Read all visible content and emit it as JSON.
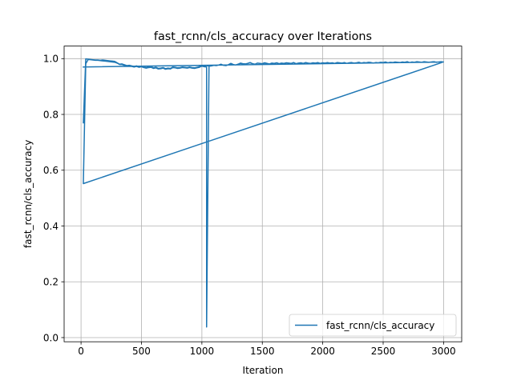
{
  "chart_data": {
    "type": "line",
    "title": "fast_rcnn/cls_accuracy over Iterations",
    "xlabel": "Iteration",
    "ylabel": "fast_rcnn/cls_accuracy",
    "xlim": [
      -140,
      3150
    ],
    "ylim": [
      -0.015,
      1.045
    ],
    "xticks": [
      0,
      500,
      1000,
      1500,
      2000,
      2500,
      3000
    ],
    "xtick_labels": [
      "0",
      "500",
      "1000",
      "1500",
      "2000",
      "2500",
      "3000"
    ],
    "yticks": [
      0.0,
      0.2,
      0.4,
      0.6,
      0.8,
      1.0
    ],
    "ytick_labels": [
      "0.0",
      "0.2",
      "0.4",
      "0.6",
      "0.8",
      "1.0"
    ],
    "grid": true,
    "legend": "lower-right",
    "series_color": "#1f77b4",
    "series": [
      {
        "name": "fast_rcnn/cls_accuracy",
        "x": [
          19,
          39,
          59,
          79,
          99,
          119,
          139,
          159,
          179,
          199,
          219,
          239,
          259,
          279,
          299,
          319,
          339,
          359,
          379,
          399,
          419,
          439,
          459,
          479,
          499,
          519,
          539,
          559,
          579,
          599,
          619,
          639,
          659,
          679,
          699,
          719,
          739,
          759,
          779,
          799,
          819,
          839,
          859,
          879,
          899,
          919,
          939,
          959,
          979,
          999,
          1019,
          1039,
          1059,
          1079,
          1099,
          1119,
          1139,
          1159,
          1179,
          1199,
          1219,
          1239,
          1259,
          1279,
          1299,
          1319,
          1339,
          1359,
          1379,
          1399,
          1419,
          1439,
          1459,
          1479,
          1499,
          1519,
          1539,
          1559,
          1579,
          1599,
          1619,
          1639,
          1659,
          1679,
          1699,
          1719,
          1739,
          1759,
          1779,
          1799,
          1819,
          1839,
          1859,
          1879,
          1899,
          1919,
          1939,
          1959,
          1979,
          1999,
          2019,
          2039,
          2059,
          2079,
          2099,
          2119,
          2139,
          2159,
          2179,
          2199,
          2219,
          2239,
          2259,
          2279,
          2299,
          2319,
          2339,
          2359,
          2379,
          2399,
          2419,
          2439,
          2459,
          2479,
          2499,
          2519,
          2539,
          2559,
          2579,
          2599,
          2619,
          2639,
          2659,
          2679,
          2699,
          2719,
          2739,
          2759,
          2779,
          2799,
          2819,
          2839,
          2859,
          2879,
          2899,
          2919,
          2939,
          2959,
          2979,
          2999,
          19,
          39,
          59,
          79,
          99,
          119,
          139,
          159,
          179,
          199,
          219,
          239,
          259,
          279,
          299,
          319,
          339,
          359,
          379,
          399,
          419,
          439,
          459,
          479,
          499,
          519,
          539,
          559,
          579,
          599,
          619,
          639,
          659,
          679,
          699,
          719,
          739,
          759,
          779,
          799,
          819,
          839,
          859,
          879,
          899,
          919,
          939,
          959,
          979,
          999,
          1019,
          1039,
          1039,
          1059,
          1079,
          1099,
          1119,
          1139,
          1159,
          1179,
          1199,
          1219,
          1239,
          1259,
          1279,
          1299,
          1319,
          1339,
          1359,
          1379,
          1399,
          1419,
          1439,
          1459,
          1479,
          1499,
          1519,
          1539,
          1559,
          1579,
          1599,
          1619,
          1639,
          1659,
          1679,
          1699,
          1719,
          1739,
          1759,
          1779,
          1799,
          1819,
          1839,
          1859,
          1879,
          1899,
          1919,
          1939,
          1959,
          1979,
          1999,
          2019,
          2039,
          2059,
          2079,
          2099,
          2119,
          2139,
          2159,
          2179,
          2199,
          2219,
          2239,
          2259,
          2279,
          2299,
          2319,
          2339,
          2359,
          2379,
          2399,
          2419,
          2439,
          2459,
          2479,
          2499,
          2519,
          2539,
          2559,
          2579,
          2599,
          2619,
          2639,
          2659,
          2679,
          2699,
          2719,
          2739,
          2759,
          2779,
          2799,
          2819,
          2839,
          2859,
          2879,
          2899,
          2919,
          2939,
          2959,
          2979,
          2999,
          19
        ],
        "y": [
          0.77,
          0.999,
          0.998,
          0.997,
          0.996,
          0.995,
          0.995,
          0.994,
          0.995,
          0.994,
          0.993,
          0.992,
          0.991,
          0.99,
          0.985,
          0.98,
          0.981,
          0.978,
          0.975,
          0.976,
          0.974,
          0.972,
          0.974,
          0.971,
          0.973,
          0.97,
          0.968,
          0.97,
          0.971,
          0.967,
          0.969,
          0.965,
          0.966,
          0.968,
          0.964,
          0.966,
          0.965,
          0.97,
          0.969,
          0.967,
          0.968,
          0.97,
          0.969,
          0.968,
          0.97,
          0.968,
          0.967,
          0.969,
          0.971,
          0.975,
          0.973,
          0.975,
          0.973,
          0.974,
          0.976,
          0.975,
          0.977,
          0.98,
          0.976,
          0.975,
          0.978,
          0.983,
          0.979,
          0.977,
          0.98,
          0.984,
          0.982,
          0.981,
          0.983,
          0.986,
          0.982,
          0.98,
          0.984,
          0.983,
          0.982,
          0.985,
          0.983,
          0.981,
          0.984,
          0.983,
          0.985,
          0.982,
          0.984,
          0.983,
          0.985,
          0.984,
          0.983,
          0.986,
          0.982,
          0.984,
          0.985,
          0.983,
          0.986,
          0.984,
          0.983,
          0.985,
          0.984,
          0.986,
          0.983,
          0.985,
          0.984,
          0.986,
          0.984,
          0.985,
          0.983,
          0.986,
          0.985,
          0.984,
          0.986,
          0.983,
          0.985,
          0.986,
          0.984,
          0.985,
          0.987,
          0.984,
          0.986,
          0.985,
          0.987,
          0.986,
          0.984,
          0.986,
          0.985,
          0.987,
          0.986,
          0.988,
          0.985,
          0.987,
          0.986,
          0.988,
          0.987,
          0.986,
          0.988,
          0.987,
          0.989,
          0.986,
          0.988,
          0.987,
          0.989,
          0.988,
          0.987,
          0.989,
          0.988,
          0.987,
          0.988,
          0.989,
          0.987,
          0.988,
          0.989,
          0.988,
          0.552,
          0.982,
          0.997,
          0.996,
          0.995,
          0.994,
          0.994,
          0.993,
          0.992,
          0.991,
          0.99,
          0.989,
          0.988,
          0.987,
          0.984,
          0.979,
          0.979,
          0.976,
          0.973,
          0.974,
          0.972,
          0.97,
          0.972,
          0.969,
          0.971,
          0.968,
          0.966,
          0.968,
          0.969,
          0.965,
          0.967,
          0.963,
          0.964,
          0.966,
          0.962,
          0.964,
          0.963,
          0.968,
          0.967,
          0.965,
          0.966,
          0.968,
          0.967,
          0.966,
          0.968,
          0.966,
          0.965,
          0.967,
          0.969,
          0.973,
          0.971,
          0.97,
          0.038,
          0.975,
          0.974,
          0.976,
          0.975,
          0.977,
          0.98,
          0.976,
          0.975,
          0.978,
          0.982,
          0.979,
          0.977,
          0.98,
          0.983,
          0.982,
          0.981,
          0.983,
          0.985,
          0.982,
          0.98,
          0.984,
          0.983,
          0.982,
          0.984,
          0.983,
          0.981,
          0.984,
          0.983,
          0.985,
          0.982,
          0.984,
          0.983,
          0.985,
          0.984,
          0.983,
          0.986,
          0.982,
          0.984,
          0.985,
          0.983,
          0.986,
          0.984,
          0.983,
          0.985,
          0.984,
          0.986,
          0.983,
          0.985,
          0.984,
          0.986,
          0.984,
          0.985,
          0.983,
          0.986,
          0.985,
          0.984,
          0.986,
          0.983,
          0.985,
          0.986,
          0.984,
          0.985,
          0.987,
          0.984,
          0.986,
          0.985,
          0.987,
          0.986,
          0.984,
          0.986,
          0.985,
          0.987,
          0.986,
          0.988,
          0.985,
          0.987,
          0.986,
          0.988,
          0.987,
          0.986,
          0.988,
          0.987,
          0.989,
          0.986,
          0.988,
          0.987,
          0.989,
          0.988,
          0.987,
          0.989,
          0.988,
          0.987,
          0.988,
          0.989,
          0.987,
          0.988,
          0.989,
          0.988,
          0.97
        ]
      }
    ]
  }
}
